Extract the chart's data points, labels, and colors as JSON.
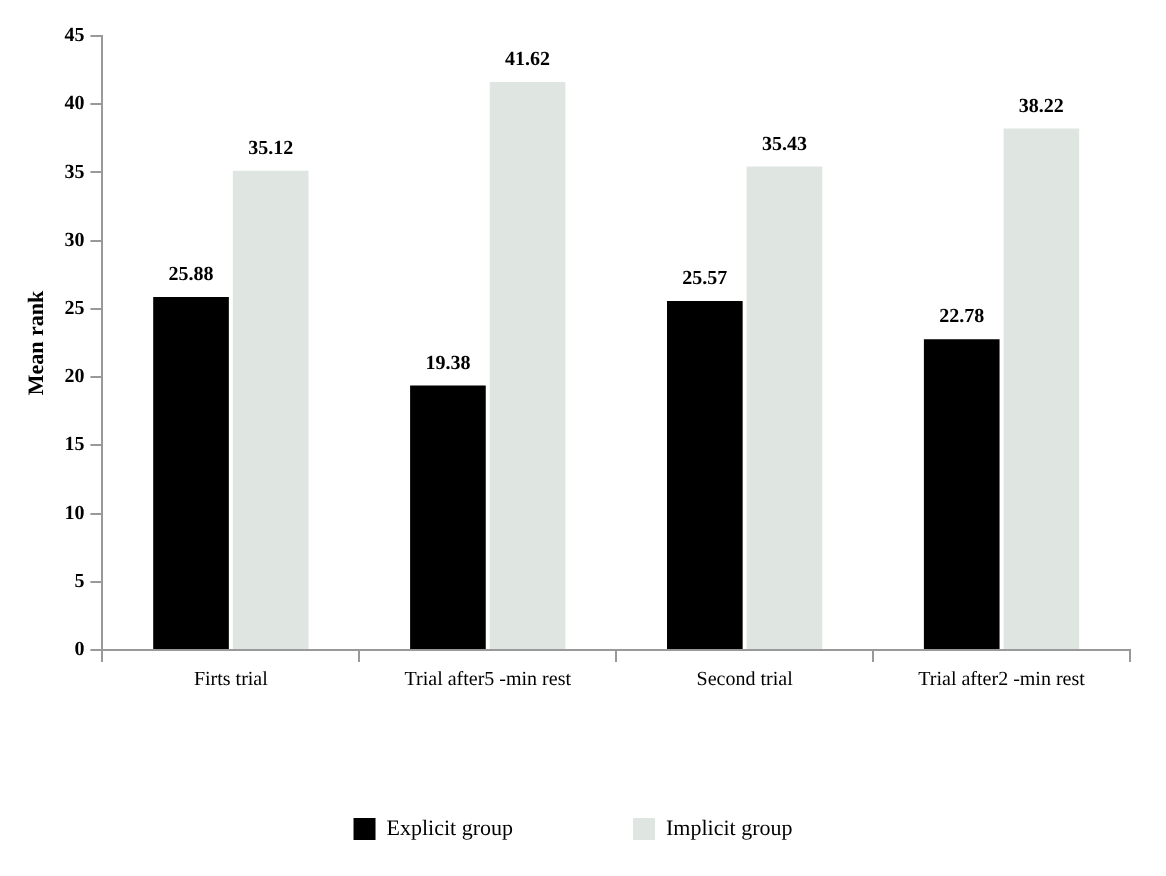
{
  "chart_data": {
    "type": "bar",
    "ylabel": "Mean rank",
    "categories": [
      "Firts trial",
      "Trial after5 -min rest",
      "Second trial",
      "Trial after2 -min rest"
    ],
    "series": [
      {
        "name": "Explicit group",
        "color": "#000000",
        "values": [
          25.88,
          19.38,
          25.57,
          22.78
        ]
      },
      {
        "name": "Implicit group",
        "color": "#dfe5e1",
        "values": [
          35.12,
          41.62,
          35.43,
          38.22
        ]
      }
    ],
    "ylim": [
      0,
      45
    ],
    "yticks": [
      0,
      5,
      10,
      15,
      20,
      25,
      30,
      35,
      40,
      45
    ],
    "grid": false,
    "legend": "bottom",
    "data_labels": true
  }
}
